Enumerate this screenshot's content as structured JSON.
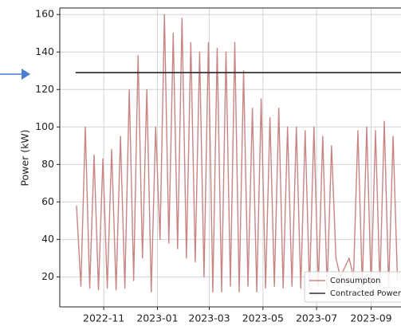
{
  "chart_data": {
    "type": "line",
    "ylabel": "Power (kW)",
    "x": [
      "2022-10-01",
      "2022-10-06",
      "2022-10-11",
      "2022-10-16",
      "2022-10-21",
      "2022-10-26",
      "2022-10-31",
      "2022-11-05",
      "2022-11-10",
      "2022-11-15",
      "2022-11-20",
      "2022-11-25",
      "2022-11-30",
      "2022-12-05",
      "2022-12-10",
      "2022-12-15",
      "2022-12-20",
      "2022-12-25",
      "2022-12-30",
      "2023-01-04",
      "2023-01-09",
      "2023-01-14",
      "2023-01-19",
      "2023-01-24",
      "2023-01-29",
      "2023-02-03",
      "2023-02-08",
      "2023-02-13",
      "2023-02-18",
      "2023-02-23",
      "2023-02-28",
      "2023-03-05",
      "2023-03-10",
      "2023-03-15",
      "2023-03-20",
      "2023-03-25",
      "2023-03-30",
      "2023-04-04",
      "2023-04-09",
      "2023-04-14",
      "2023-04-19",
      "2023-04-24",
      "2023-04-29",
      "2023-05-04",
      "2023-05-09",
      "2023-05-14",
      "2023-05-19",
      "2023-05-24",
      "2023-05-29",
      "2023-06-03",
      "2023-06-08",
      "2023-06-13",
      "2023-06-18",
      "2023-06-23",
      "2023-06-28",
      "2023-07-03",
      "2023-07-08",
      "2023-07-13",
      "2023-07-18",
      "2023-07-23",
      "2023-07-28",
      "2023-08-02",
      "2023-08-07",
      "2023-08-12",
      "2023-08-17",
      "2023-08-22",
      "2023-08-27",
      "2023-09-01",
      "2023-09-06",
      "2023-09-11",
      "2023-09-16",
      "2023-09-21",
      "2023-09-26",
      "2023-10-01"
    ],
    "series": [
      {
        "name": "Consumpton",
        "color": "#c98484",
        "values": [
          58,
          15,
          100,
          14,
          85,
          13,
          83,
          14,
          88,
          13,
          95,
          14,
          120,
          18,
          138,
          30,
          120,
          12,
          100,
          40,
          160,
          38,
          150,
          35,
          158,
          30,
          145,
          28,
          140,
          20,
          145,
          12,
          142,
          12,
          140,
          15,
          145,
          12,
          130,
          15,
          110,
          12,
          115,
          14,
          105,
          15,
          110,
          14,
          100,
          15,
          100,
          14,
          98,
          14,
          100,
          15,
          95,
          14,
          90,
          30,
          20,
          25,
          30,
          20,
          98,
          15,
          100,
          14,
          98,
          15,
          103,
          14,
          95,
          18
        ]
      },
      {
        "name": "Contracted Power",
        "color": "#333333",
        "x": [
          "2022-09-30",
          "2023-10-05"
        ],
        "values": [
          129,
          129
        ]
      }
    ],
    "xlim": [
      "2022-09-12",
      "2023-10-05"
    ],
    "xticks": [
      {
        "value": "2022-11-01",
        "label": "2022-11"
      },
      {
        "value": "2023-01-01",
        "label": "2023-01"
      },
      {
        "value": "2023-03-01",
        "label": "2023-03"
      },
      {
        "value": "2023-05-01",
        "label": "2023-05"
      },
      {
        "value": "2023-07-01",
        "label": "2023-07"
      },
      {
        "value": "2023-09-01",
        "label": "2023-09"
      }
    ],
    "ylim": [
      4,
      163.5
    ],
    "yticks": [
      20,
      40,
      60,
      80,
      100,
      120,
      140,
      160
    ],
    "grid": true,
    "legend": "lower right"
  }
}
